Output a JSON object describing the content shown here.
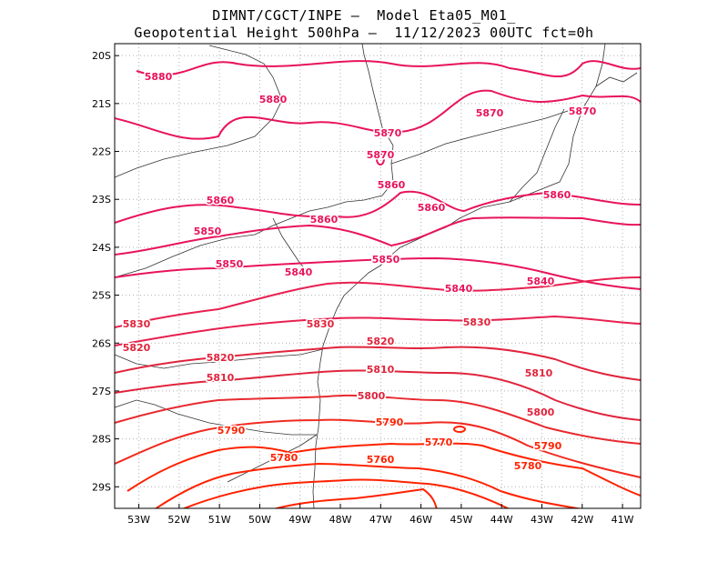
{
  "header": {
    "line1": "DIMNT/CGCT/INPE —  Model Eta05_M01_",
    "line2": "Geopotential Height 500hPa —  11/12/2023 00UTC fct=0h"
  },
  "map": {
    "lon_range": [
      -53.6,
      -40.55
    ],
    "lat_range": [
      -29.45,
      -19.75
    ],
    "x_ticks": [
      "53W",
      "52W",
      "51W",
      "50W",
      "49W",
      "48W",
      "47W",
      "46W",
      "45W",
      "44W",
      "43W",
      "42W",
      "41W"
    ],
    "y_ticks": [
      "20S",
      "21S",
      "22S",
      "23S",
      "24S",
      "25S",
      "26S",
      "27S",
      "28S",
      "29S"
    ],
    "colors": {
      "high": "#e8145a",
      "mid": "#e0243c",
      "low": "#ff2200",
      "coast": "#333333",
      "grid": "#b0b0b0"
    },
    "contour_labels": [
      "5880",
      "5880",
      "5870",
      "5870",
      "5870",
      "5870",
      "5860",
      "5860",
      "5860",
      "5860",
      "5860",
      "5850",
      "5850",
      "5850",
      "5840",
      "5840",
      "5840",
      "5830",
      "5830",
      "5830",
      "5820",
      "5820",
      "5820",
      "5810",
      "5810",
      "5810",
      "5800",
      "5800",
      "5790",
      "5790",
      "5790",
      "5780",
      "5780",
      "5770",
      "5760"
    ]
  }
}
